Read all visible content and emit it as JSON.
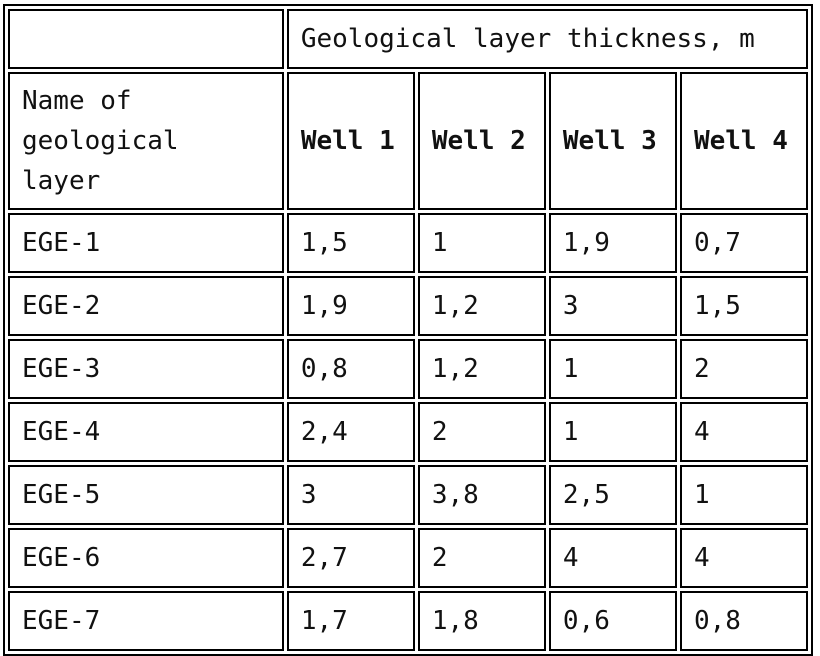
{
  "table": {
    "group_header": "Geological layer thickness, m",
    "name_header": "Name of geological layer",
    "wells": [
      "Well 1",
      "Well 2",
      "Well 3",
      "Well 4"
    ],
    "rows": [
      {
        "name": "EGE-1",
        "values": [
          "1,5",
          "1",
          "1,9",
          "0,7"
        ]
      },
      {
        "name": "EGE-2",
        "values": [
          "1,9",
          "1,2",
          "3",
          "1,5"
        ]
      },
      {
        "name": "EGE-3",
        "values": [
          "0,8",
          "1,2",
          "1",
          "2"
        ]
      },
      {
        "name": "EGE-4",
        "values": [
          "2,4",
          "2",
          "1",
          "4"
        ]
      },
      {
        "name": "EGE-5",
        "values": [
          "3",
          "3,8",
          "2,5",
          "1"
        ]
      },
      {
        "name": "EGE-6",
        "values": [
          "2,7",
          "2",
          "4",
          "4"
        ]
      },
      {
        "name": "EGE-7",
        "values": [
          "1,7",
          "1,8",
          "0,6",
          "0,8"
        ]
      }
    ]
  }
}
